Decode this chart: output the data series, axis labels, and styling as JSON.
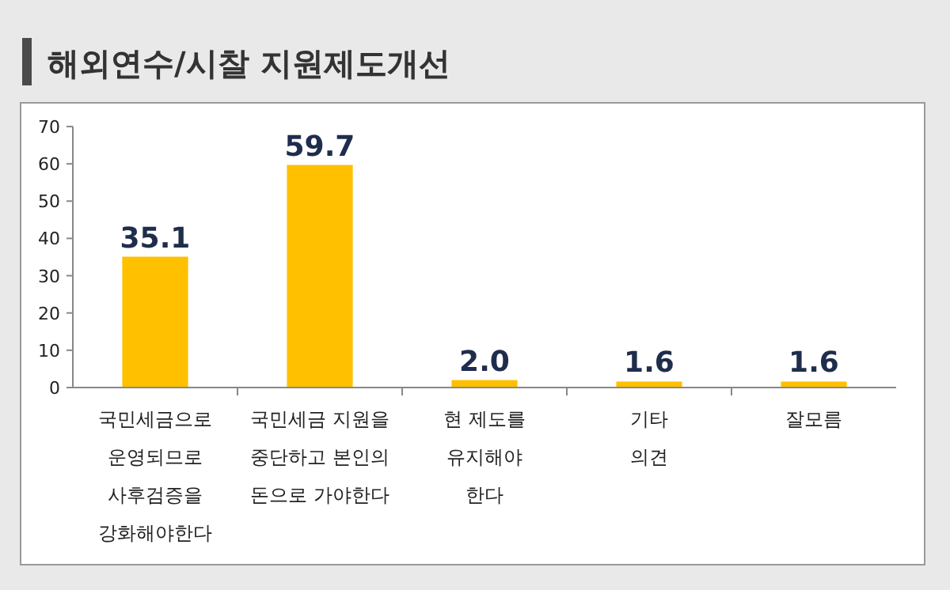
{
  "chart_data": {
    "type": "bar",
    "title": "해외연수/시찰 지원제도개선",
    "categories": [
      "국민세금으로\n운영되므로\n사후검증을\n강화해야한다",
      "국민세금 지원을\n중단하고 본인의\n돈으로 가야한다",
      "현 제도를\n유지해야\n한다",
      "기타\n의견",
      "잘모름"
    ],
    "values": [
      35.1,
      59.7,
      2.0,
      1.6,
      1.6
    ],
    "color": "#ffc000",
    "ylim": [
      0,
      70
    ],
    "yticks": [
      0,
      10,
      20,
      30,
      40,
      50,
      60,
      70
    ],
    "value_labels": [
      "35.1",
      "59.7",
      "2.0",
      "1.6",
      "1.6"
    ],
    "grid": false
  }
}
